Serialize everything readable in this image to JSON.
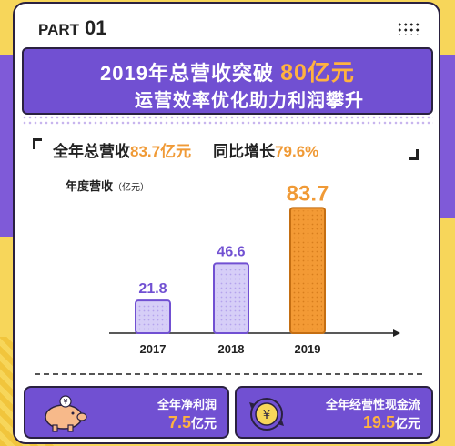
{
  "header": {
    "part_label": "PART",
    "part_number": "01"
  },
  "title": {
    "line1_prefix": "2019年总营收突破",
    "line1_accent": "80亿元",
    "line2": "运营效率优化助力利润攀升"
  },
  "summary": {
    "revenue_label": "全年总营收",
    "revenue_value": "83.7亿元",
    "growth_label": "同比增长",
    "growth_value": "79.6%"
  },
  "chart_title": {
    "label": "年度营收",
    "unit": "（亿元）"
  },
  "chart_data": {
    "type": "bar",
    "categories": [
      "2017",
      "2018",
      "2019"
    ],
    "values": [
      21.8,
      46.6,
      83.7
    ],
    "value_labels": [
      "21.8",
      "46.6",
      "83.7"
    ],
    "ylabel": "年度营收（亿元）",
    "ylim": [
      0,
      90
    ],
    "grid": false,
    "colors": {
      "normal_fill": "#d6cef7",
      "normal_stroke": "#7150d2",
      "highlight_fill": "#f39a35",
      "highlight_stroke": "#c46e12",
      "normal_label": "#7150d2",
      "highlight_label": "#f09a36"
    }
  },
  "cards": {
    "net_profit": {
      "label": "全年净利润",
      "value": "7.5",
      "unit": "亿元",
      "icon": "piggy-bank-icon"
    },
    "cash_flow": {
      "label": "全年经营性现金流",
      "value": "19.5",
      "unit": "亿元",
      "icon": "yuan-cycle-icon"
    }
  },
  "colors": {
    "accent_purple": "#7150d2",
    "accent_orange": "#f09a36",
    "background_yellow": "#f7d65a"
  }
}
